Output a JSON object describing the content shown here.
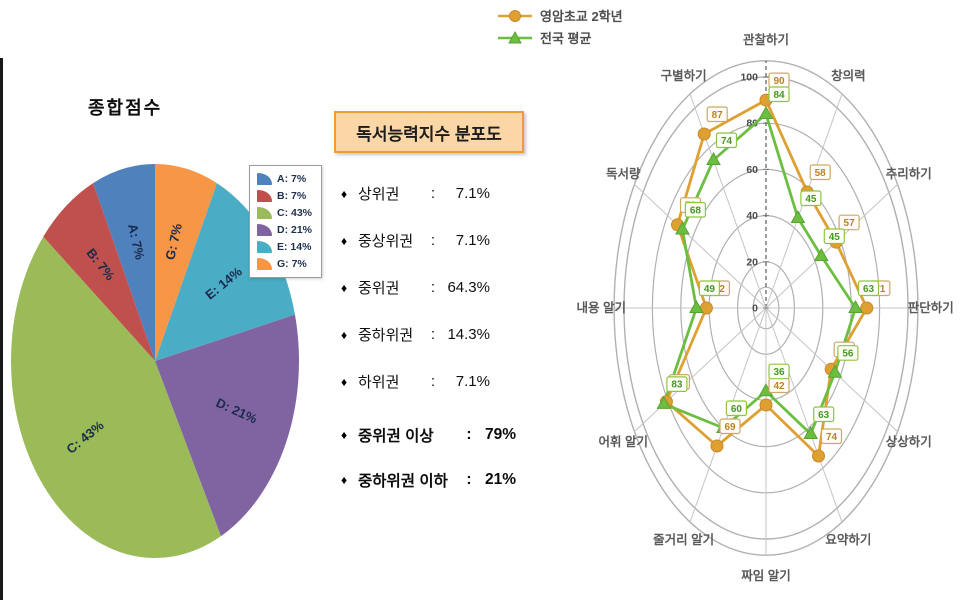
{
  "distribution_panel": {
    "title": "독서능력지수 분포도",
    "title_bg": "#FBD7A8",
    "title_border": "#ED9D31",
    "bullet": "♦",
    "colon": ":",
    "items": [
      {
        "label": "상위권",
        "value": "7.1%"
      },
      {
        "label": "중상위권",
        "value": "7.1%"
      },
      {
        "label": "중위권",
        "value": "64.3%"
      },
      {
        "label": "중하위권",
        "value": "14.3%"
      },
      {
        "label": "하위권",
        "value": "7.1%"
      }
    ],
    "summary": [
      {
        "label": "중위권 이상",
        "value": "79%"
      },
      {
        "label": "중하위권 이하",
        "value": "21%"
      }
    ]
  },
  "chart_data": [
    {
      "id": "score-pie",
      "type": "pie",
      "title": "종합점수",
      "categories": [
        "A",
        "B",
        "C",
        "D",
        "E",
        "G"
      ],
      "values": [
        7,
        7,
        43,
        21,
        14,
        7
      ],
      "labels": [
        "A: 7%",
        "B: 7%",
        "C: 43%",
        "D: 21%",
        "E: 14%",
        "G: 7%"
      ],
      "colors": [
        "#4F81BD",
        "#C0504D",
        "#9BBB59",
        "#8064A2",
        "#4BACC6",
        "#F79646"
      ],
      "start_angle_deg": 90,
      "direction": "counterclockwise",
      "legend_position": "right",
      "label_color": "#1A2B4C"
    },
    {
      "id": "ability-radar",
      "type": "radar",
      "categories": [
        "관찰하기",
        "창의력",
        "추리하기",
        "판단하기",
        "상상하기",
        "요약하기",
        "짜임 알기",
        "줄거리 알기",
        "어휘 알기",
        "내용 알기",
        "독서량",
        "구별하기"
      ],
      "rticks": [
        0,
        20,
        40,
        60,
        80,
        100
      ],
      "rings": [
        9,
        20,
        40,
        60,
        80,
        100,
        107
      ],
      "rmax_ring": 107,
      "grid_color": "#b0b0b0",
      "axis_label_color": "#595959",
      "series": [
        {
          "name": "영암초교 2학년",
          "marker": "circle",
          "color": "#DFA032",
          "marker_stroke": "#C9882A",
          "label_text_color": "#B9812C",
          "label_border_color": "#CDA768",
          "values": [
            90,
            58,
            57,
            71,
            53,
            74,
            42,
            69,
            81,
            42,
            72,
            87
          ]
        },
        {
          "name": "전국 평균",
          "marker": "triangle",
          "color": "#6CBE41",
          "marker_stroke": "#58A332",
          "label_text_color": "#47962B",
          "label_border_color": "#8CC63F",
          "values": [
            84,
            45,
            45,
            63,
            56,
            63,
            36,
            60,
            83,
            49,
            68,
            74
          ]
        }
      ]
    }
  ]
}
